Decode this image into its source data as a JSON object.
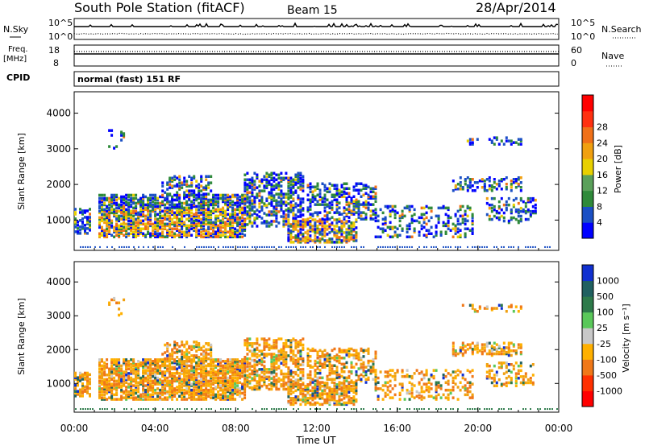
{
  "header": {
    "station": "South Pole Station (fitACF)",
    "beam": "Beam 15",
    "date": "28/Apr/2014"
  },
  "nsky": {
    "label": "N.Sky",
    "tick_top": "10^5",
    "tick_bottom": "10^0",
    "right_label": "N.Search",
    "right_tick_top": "10^5",
    "right_tick_bottom": "10^0"
  },
  "freq": {
    "label_line1": "Freq.",
    "label_line2": "[MHz]",
    "tick_top": "18",
    "tick_bottom": "8",
    "right_label": "Nave",
    "right_tick_top": "60",
    "right_tick_bottom": "0"
  },
  "cpid": {
    "label": "CPID",
    "value": "normal (fast) 151 RF"
  },
  "chart_data": [
    {
      "type": "heatmap",
      "title": "",
      "ylabel": "Slant Range [km]",
      "xlabel": "",
      "ylim": [
        150,
        4600
      ],
      "yticks": [
        1000,
        2000,
        3000,
        4000
      ],
      "xticks": [
        "00:00",
        "04:00",
        "08:00",
        "12:00",
        "16:00",
        "20:00",
        "00:00"
      ],
      "colorbar": {
        "label": "Power [dB]",
        "ticks": [
          "4",
          "8",
          "12",
          "16",
          "20",
          "24",
          "28"
        ],
        "colors": [
          "#0000ff",
          "#1a4fc4",
          "#2f8a3a",
          "#5aa05a",
          "#e8d000",
          "#f0a010",
          "#f07018",
          "#ff3010",
          "#ff0000"
        ]
      }
    },
    {
      "type": "heatmap",
      "title": "",
      "ylabel": "Slant Range [km]",
      "xlabel": "Time UT",
      "ylim": [
        150,
        4600
      ],
      "yticks": [
        1000,
        2000,
        3000,
        4000
      ],
      "xticks": [
        "00:00",
        "04:00",
        "08:00",
        "12:00",
        "16:00",
        "20:00",
        "00:00"
      ],
      "colorbar": {
        "label": "Velocity [m s⁻¹]",
        "ticks": [
          "1000",
          "500",
          "100",
          "25",
          "-25",
          "-100",
          "-500",
          "-1000"
        ],
        "colors": [
          "#1030d0",
          "#206060",
          "#2d7a4a",
          "#5ac85a",
          "#c8c8c8",
          "#ffb000",
          "#f07818",
          "#ff3000",
          "#ff0000"
        ]
      }
    }
  ]
}
